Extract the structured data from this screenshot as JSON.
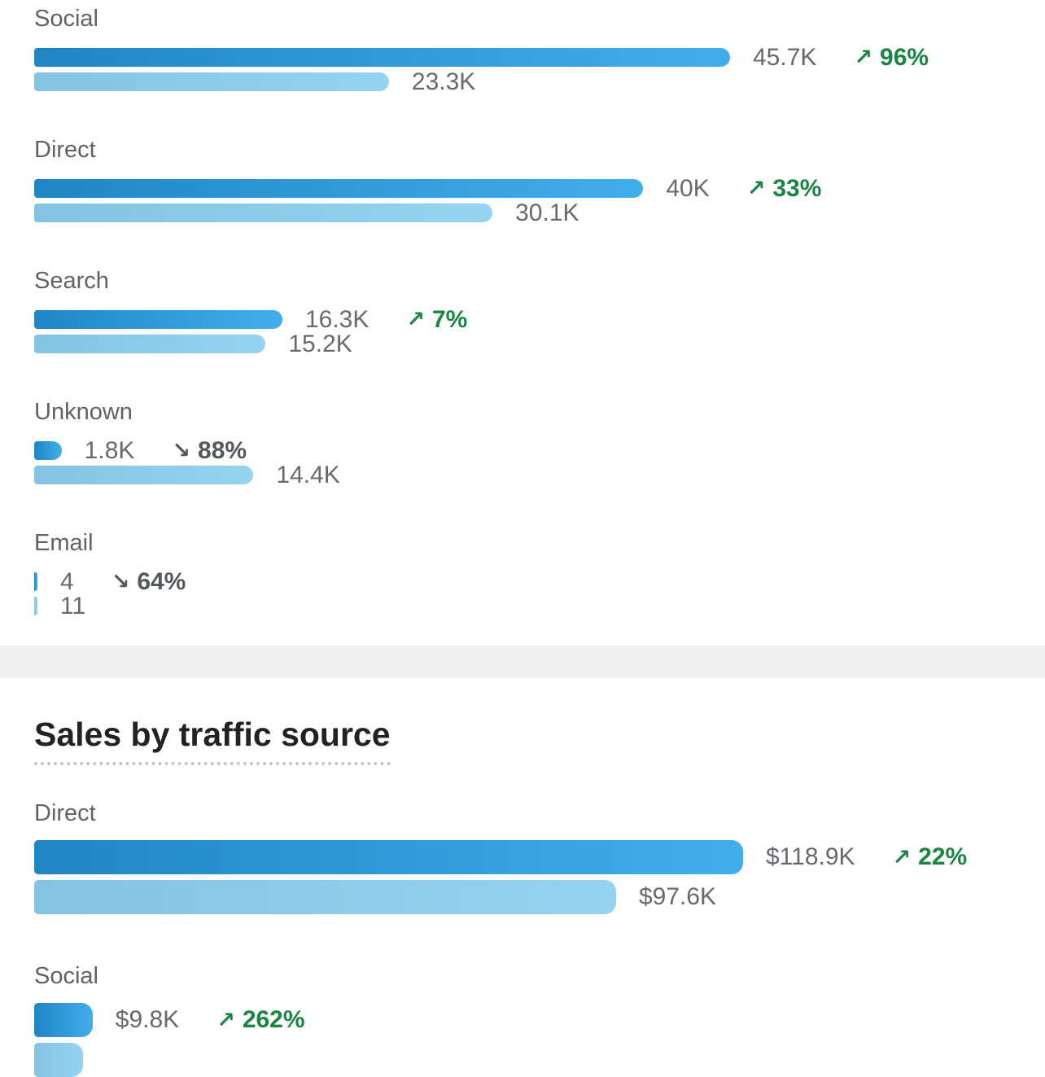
{
  "icons": {
    "trend_up": "↗",
    "trend_down": "↘"
  },
  "colors": {
    "bar_current_start": "#1f86c5",
    "bar_current_end": "#41aeeb",
    "bar_previous_start": "#85c3e3",
    "bar_previous_end": "#95d3f1",
    "label_gray": "#5f6368",
    "value_gray": "#66696e",
    "green": "#1a8442",
    "down_gray": "#54585d",
    "divider_band": "#f0f0f0",
    "heading": "#202223",
    "dotted": "#c4c4c4"
  },
  "chart_data": [
    {
      "type": "bar",
      "orientation": "horizontal",
      "title": "",
      "categories": [
        "Social",
        "Direct",
        "Search",
        "Unknown",
        "Email"
      ],
      "series": [
        {
          "name": "current_period",
          "values": [
            45700,
            40000,
            16300,
            1800,
            4
          ],
          "labels": [
            "45.7K",
            "40K",
            "16.3K",
            "1.8K",
            "4"
          ]
        },
        {
          "name": "previous_period",
          "values": [
            23300,
            30100,
            15200,
            14400,
            11
          ],
          "labels": [
            "23.3K",
            "30.1K",
            "15.2K",
            "14.4K",
            "11"
          ]
        }
      ],
      "changes": [
        {
          "direction": "up",
          "label": "96%"
        },
        {
          "direction": "up",
          "label": "33%"
        },
        {
          "direction": "up",
          "label": "7%"
        },
        {
          "direction": "down",
          "label": "88%"
        },
        {
          "direction": "down",
          "label": "64%"
        }
      ],
      "axis_max": 45700,
      "legend": "none",
      "grid": false
    },
    {
      "type": "bar",
      "orientation": "horizontal",
      "title": "Sales by traffic source",
      "categories": [
        "Direct",
        "Social"
      ],
      "series": [
        {
          "name": "current_period",
          "values": [
            118900,
            9800
          ],
          "labels": [
            "$118.9K",
            "$9.8K"
          ]
        },
        {
          "name": "previous_period",
          "values": [
            97600,
            null
          ],
          "labels": [
            "$97.6K",
            ""
          ]
        }
      ],
      "changes": [
        {
          "direction": "up",
          "label": "22%"
        },
        {
          "direction": "up",
          "label": "262%"
        }
      ],
      "axis_max": 118900,
      "legend": "none",
      "grid": false
    }
  ]
}
